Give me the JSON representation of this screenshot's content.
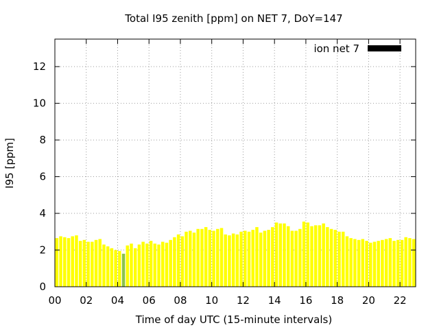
{
  "chart_data": {
    "type": "bar",
    "title": "Total I95 zenith [ppm] on NET 7, DoY=147",
    "xlabel": "Time of day UTC (15-minute intervals)",
    "ylabel": "I95 [ppm]",
    "ylim": [
      0,
      13.5
    ],
    "xlim": [
      0,
      23
    ],
    "yticks": [
      0,
      2,
      4,
      6,
      8,
      10,
      12
    ],
    "xticks": [
      0,
      2,
      4,
      6,
      8,
      10,
      12,
      14,
      16,
      18,
      20,
      22
    ],
    "xtick_labels": [
      "00",
      "02",
      "04",
      "06",
      "08",
      "10",
      "12",
      "14",
      "16",
      "18",
      "20",
      "22"
    ],
    "ytick_labels": [
      "0",
      "2",
      "4",
      "6",
      "8",
      "10",
      "12"
    ],
    "grid": true,
    "legend": {
      "label": "ion net 7",
      "position": "top-right",
      "swatch_color": "#000000"
    },
    "bar_color": "#ffff00",
    "highlight_color": "#8bc34a",
    "highlight_index": 17,
    "series": [
      {
        "values": [
          2.65,
          2.75,
          2.7,
          2.65,
          2.75,
          2.8,
          2.5,
          2.55,
          2.45,
          2.45,
          2.55,
          2.6,
          2.3,
          2.2,
          2.1,
          2.0,
          1.95,
          1.8,
          2.25,
          2.35,
          2.1,
          2.3,
          2.45,
          2.35,
          2.5,
          2.35,
          2.3,
          2.45,
          2.4,
          2.55,
          2.7,
          2.85,
          2.75,
          3.0,
          3.05,
          2.95,
          3.15,
          3.15,
          3.25,
          3.1,
          3.05,
          3.15,
          3.2,
          2.85,
          2.8,
          2.9,
          2.85,
          3.0,
          3.05,
          3.0,
          3.1,
          3.25,
          2.95,
          3.05,
          3.1,
          3.25,
          3.5,
          3.45,
          3.45,
          3.3,
          3.05,
          3.05,
          3.15,
          3.55,
          3.5,
          3.3,
          3.35,
          3.35,
          3.45,
          3.25,
          3.15,
          3.1,
          3.0,
          3.0,
          2.75,
          2.65,
          2.6,
          2.55,
          2.6,
          2.5,
          2.4,
          2.45,
          2.5,
          2.55,
          2.6,
          2.65,
          2.5,
          2.55,
          2.55,
          2.7,
          2.65,
          2.6
        ]
      }
    ]
  }
}
